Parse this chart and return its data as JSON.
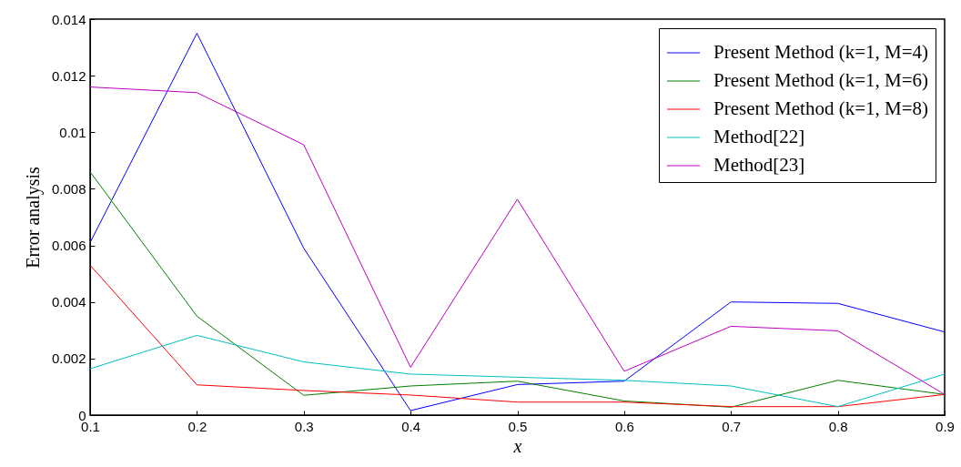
{
  "chart_data": {
    "type": "line",
    "xlabel": "x",
    "ylabel": "Error analysis",
    "x": [
      0.1,
      0.2,
      0.3,
      0.4,
      0.5,
      0.6,
      0.7,
      0.8,
      0.9
    ],
    "series": [
      {
        "name": "Present Method (k=1, M=4)",
        "color": "#0000ff",
        "values": [
          0.0061,
          0.0135,
          0.0059,
          0.00016,
          0.00108,
          0.0012,
          0.004,
          0.00395,
          0.00294
        ]
      },
      {
        "name": "Present Method (k=1, M=6)",
        "color": "#008000",
        "values": [
          0.0086,
          0.0035,
          0.0007,
          0.00103,
          0.0012,
          0.0005,
          0.00028,
          0.00123,
          0.00073
        ]
      },
      {
        "name": "Present Method (k=1, M=8)",
        "color": "#ff0000",
        "values": [
          0.0053,
          0.00107,
          0.00087,
          0.00071,
          0.00046,
          0.00046,
          0.0003,
          0.0003,
          0.00073
        ]
      },
      {
        "name": "Method[22]",
        "color": "#00bfbf",
        "values": [
          0.00164,
          0.00282,
          0.00188,
          0.00145,
          0.00134,
          0.00123,
          0.00103,
          0.0003,
          0.00145
        ]
      },
      {
        "name": "Method[23]",
        "color": "#bf00bf",
        "values": [
          0.0116,
          0.0114,
          0.00956,
          0.00169,
          0.00763,
          0.00155,
          0.00314,
          0.00298,
          0.00073
        ]
      }
    ],
    "xlim": [
      0.1,
      0.9
    ],
    "xticks": [
      0.1,
      0.2,
      0.3,
      0.4,
      0.5,
      0.6,
      0.7,
      0.8,
      0.9
    ],
    "ylim": [
      0,
      0.014
    ],
    "yticks": [
      0,
      0.002,
      0.004,
      0.006,
      0.008,
      0.01,
      0.012,
      0.014
    ],
    "grid": false,
    "legend": "top right",
    "marker": "none",
    "line_style": "solid"
  }
}
